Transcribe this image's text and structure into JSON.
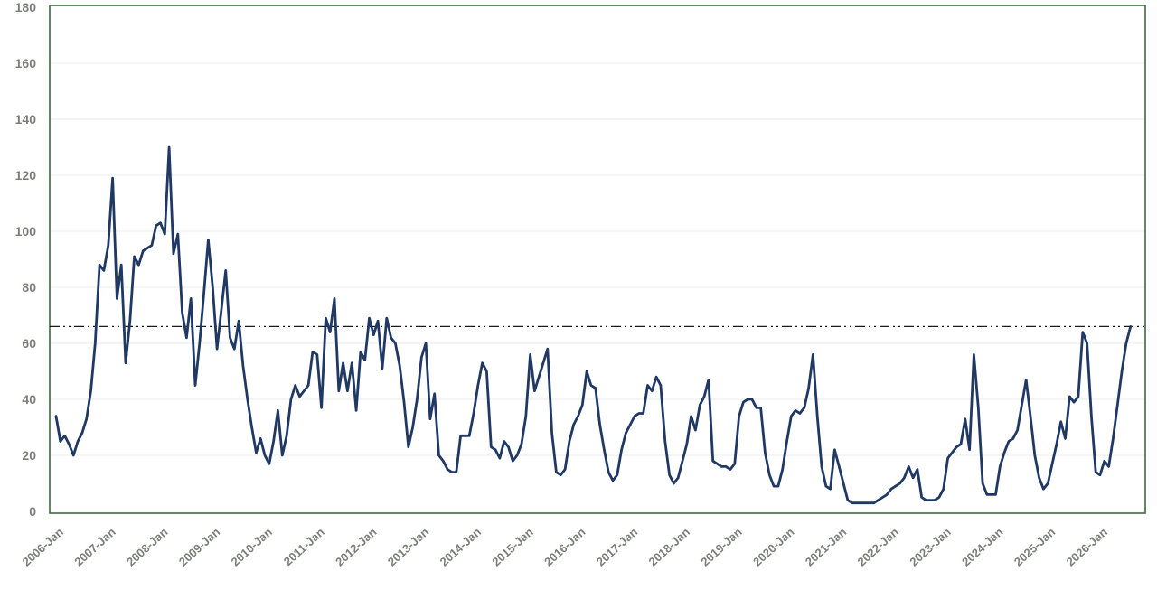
{
  "chart_data": {
    "type": "line",
    "title": "",
    "xlabel": "",
    "ylabel": "",
    "x_start": "2006-Jan",
    "x_frequency": "monthly",
    "x_tick_labels": [
      "2006-Jan",
      "2007-Jan",
      "2008-Jan",
      "2009-Jan",
      "2010-Jan",
      "2011-Jan",
      "2012-Jan",
      "2013-Jan",
      "2014-Jan",
      "2015-Jan",
      "2016-Jan",
      "2017-Jan",
      "2018-Jan",
      "2019-Jan",
      "2020-Jan",
      "2021-Jan",
      "2022-Jan",
      "2023-Jan",
      "2024-Jan",
      "2025-Jan",
      "2026-Jan"
    ],
    "y_ticks": [
      0,
      20,
      40,
      60,
      80,
      100,
      120,
      140,
      160,
      180
    ],
    "ylim": [
      0,
      180
    ],
    "grid": "horizontal-light",
    "legend": "none",
    "series": [
      {
        "name": "monthly-series",
        "color": "#1f3864",
        "values": [
          34,
          25,
          27,
          24,
          20,
          25,
          28,
          33,
          43,
          60,
          88,
          86,
          95,
          119,
          76,
          88,
          53,
          68,
          91,
          88,
          93,
          94,
          95,
          102,
          103,
          99,
          130,
          92,
          99,
          71,
          62,
          76,
          45,
          60,
          78,
          97,
          80,
          58,
          72,
          86,
          62,
          58,
          68,
          52,
          40,
          30,
          21,
          26,
          20,
          17,
          25,
          36,
          20,
          27,
          40,
          45,
          41,
          43,
          45,
          57,
          56,
          37,
          69,
          64,
          76,
          43,
          53,
          43,
          53,
          36,
          57,
          54,
          69,
          63,
          68,
          51,
          69,
          62,
          60,
          52,
          39,
          23,
          30,
          40,
          55,
          60,
          33,
          42,
          20,
          18,
          15,
          14,
          14,
          27,
          27,
          27,
          35,
          45,
          53,
          50,
          23,
          22,
          19,
          25,
          23,
          18,
          20,
          24,
          34,
          56,
          43,
          48,
          53,
          58,
          28,
          14,
          13,
          15,
          25,
          31,
          34,
          38,
          50,
          45,
          44,
          31,
          22,
          14,
          11,
          13,
          22,
          28,
          31,
          34,
          35,
          35,
          45,
          43,
          48,
          45,
          25,
          13,
          10,
          12,
          18,
          24,
          34,
          29,
          38,
          41,
          47,
          18,
          17,
          16,
          16,
          15,
          17,
          34,
          39,
          40,
          40,
          37,
          37,
          21,
          13,
          9,
          9,
          15,
          25,
          34,
          36,
          35,
          37,
          44,
          56,
          34,
          16,
          9,
          8,
          22,
          16,
          10,
          4,
          3,
          3,
          3,
          3,
          3,
          3,
          4,
          5,
          6,
          8,
          9,
          10,
          12,
          16,
          12,
          15,
          5,
          4,
          4,
          4,
          5,
          8,
          19,
          21,
          23,
          24,
          33,
          22,
          56,
          37,
          10,
          6,
          6,
          6,
          16,
          21,
          25,
          26,
          29,
          38,
          47,
          34,
          20,
          12,
          8,
          10,
          17,
          24,
          32,
          26,
          41,
          39,
          41,
          64,
          60,
          34,
          14,
          13,
          18,
          16,
          26,
          38,
          50,
          60,
          66
        ]
      }
    ],
    "reference_line": {
      "value": 66,
      "color": "#1a1a1a",
      "style": "dash-dot-dot"
    },
    "colors": {
      "plot_border": "#3e683c",
      "gridline": "#f2f2f2",
      "tick_label": "#7a7f7a",
      "background": "#ffffff"
    }
  }
}
